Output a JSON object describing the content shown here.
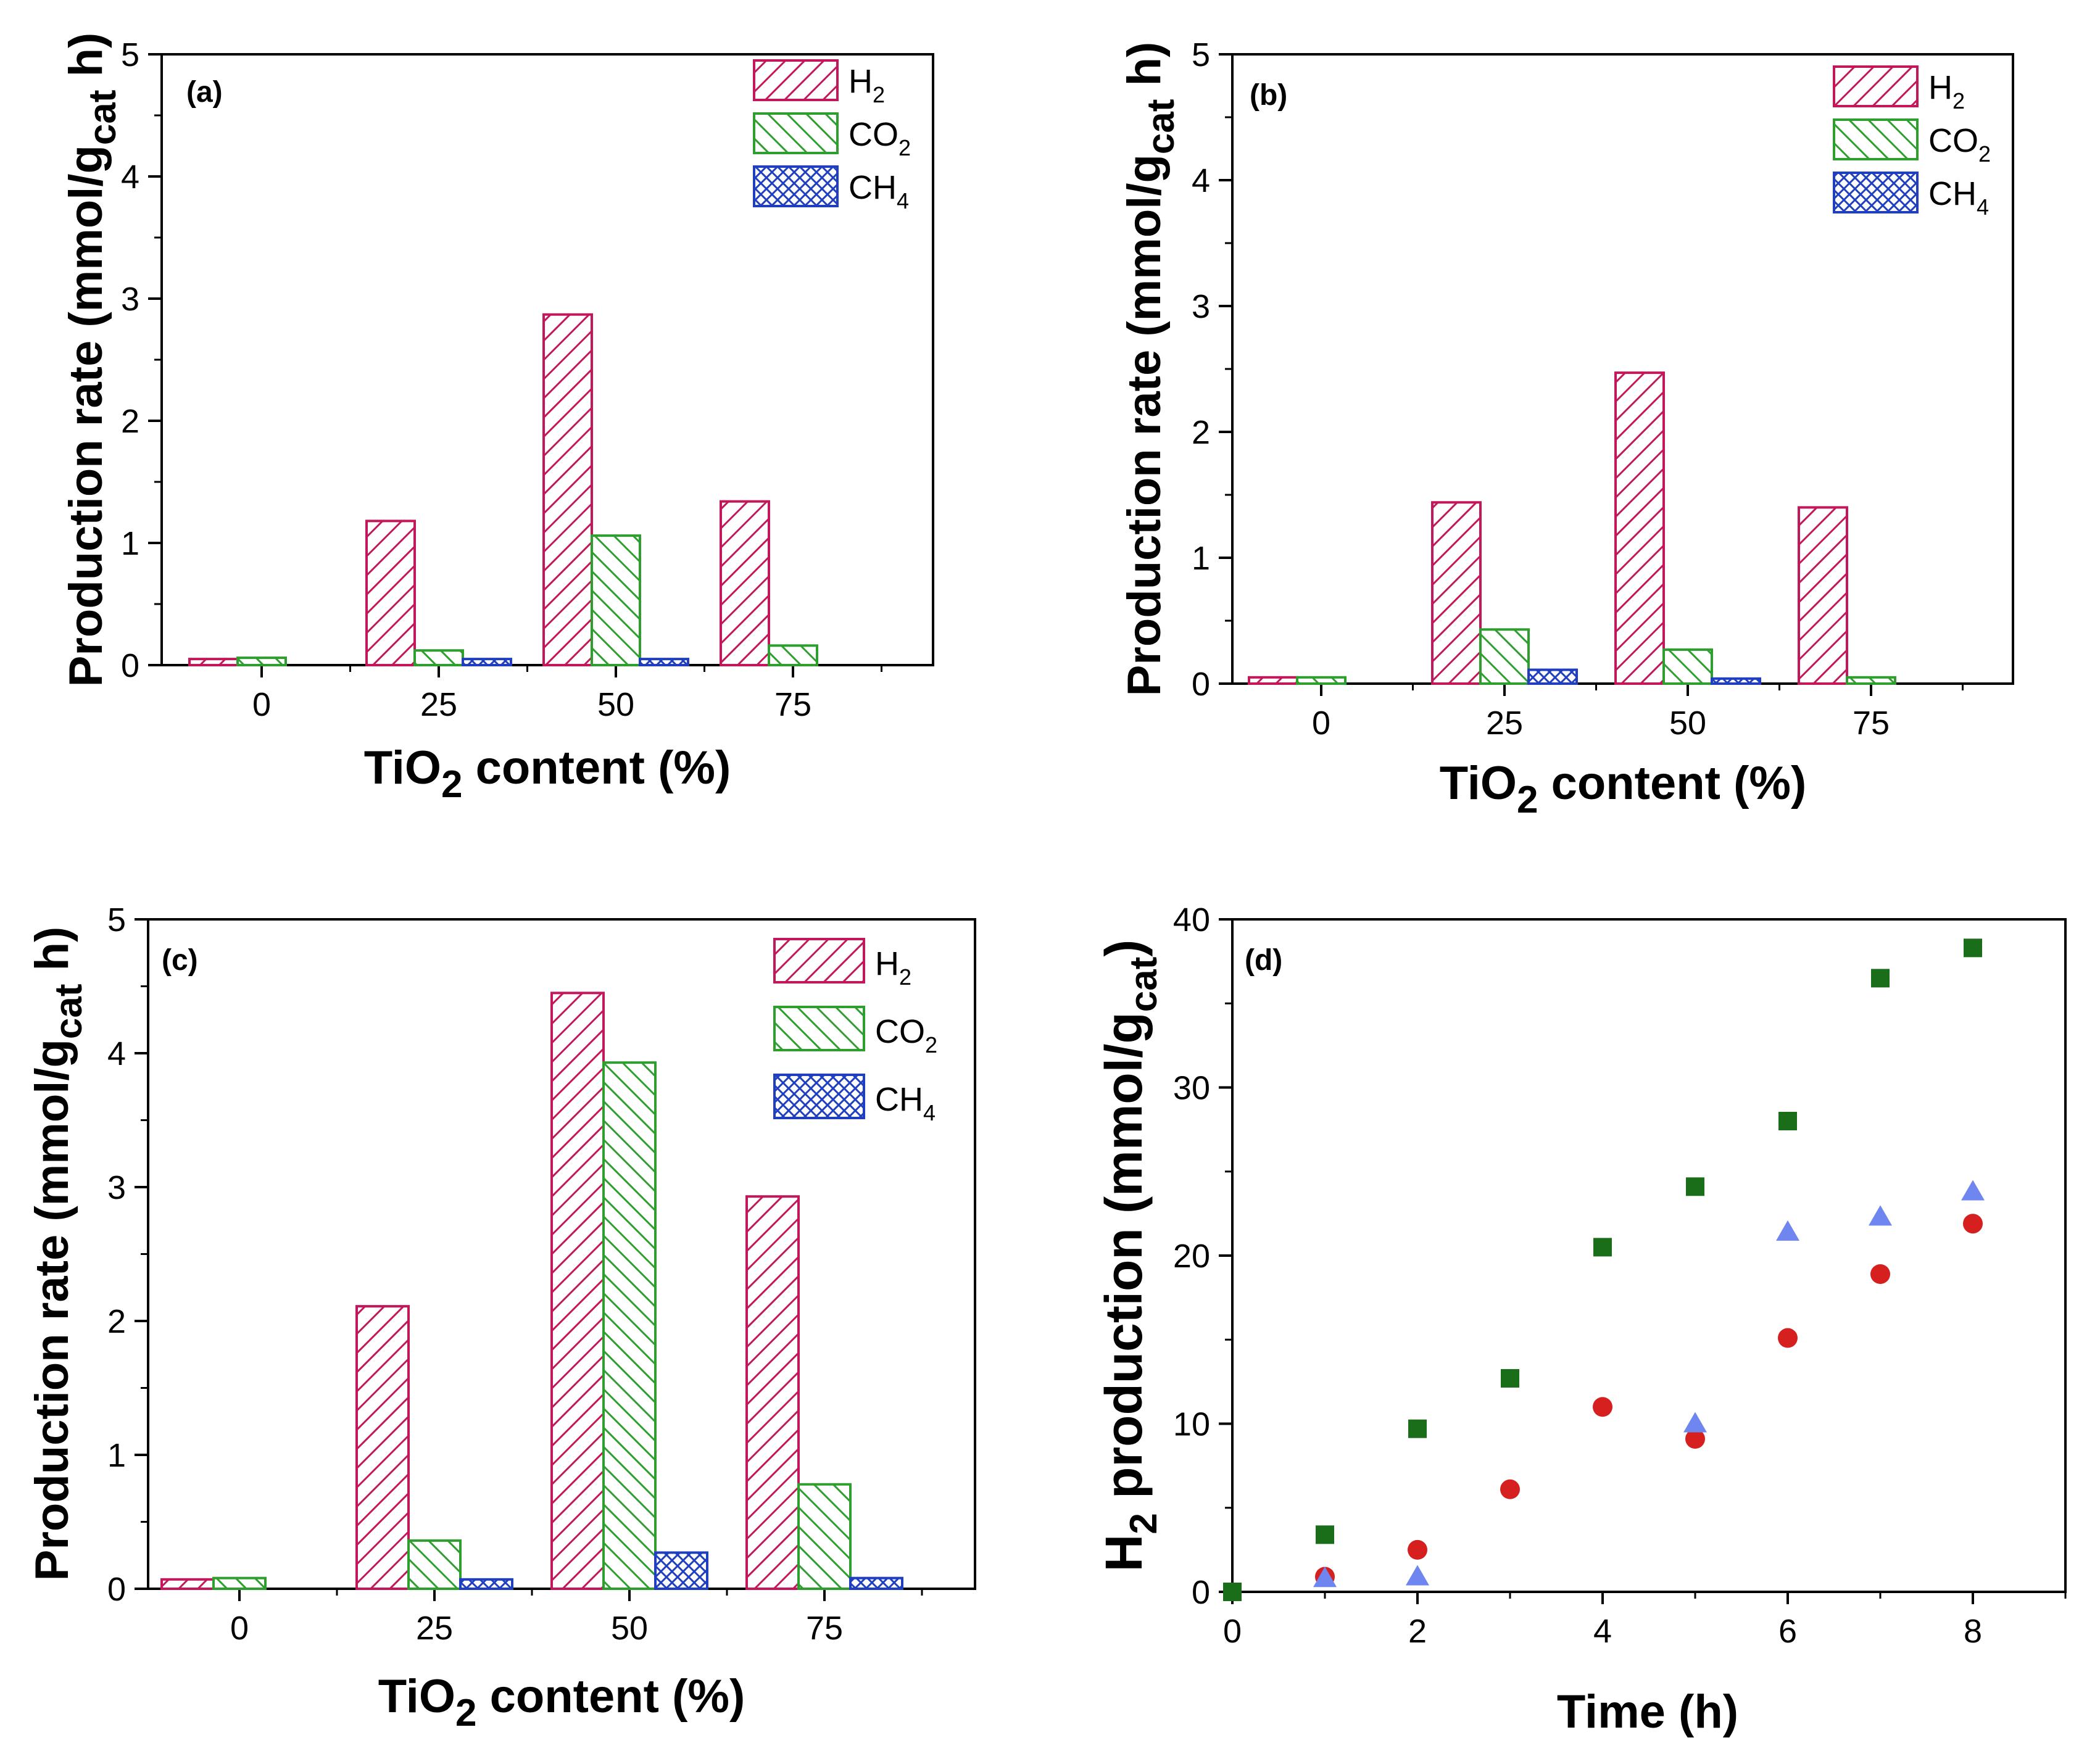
{
  "colors": {
    "h2": "#c2185b",
    "co2": "#2e9e2e",
    "ch4": "#1f3fbf",
    "sq": "#1a6e1a",
    "circ": "#d61f1f",
    "tri": "#6f86f0"
  },
  "chart_data": [
    {
      "type": "bar",
      "panel": "(a)",
      "categories": [
        "0",
        "25",
        "50",
        "75"
      ],
      "series": [
        {
          "name": "H",
          "sub": "2",
          "key": "h2",
          "values": [
            0.05,
            1.18,
            2.87,
            1.34
          ]
        },
        {
          "name": "CO",
          "sub": "2",
          "key": "co2",
          "values": [
            0.06,
            0.12,
            1.06,
            0.16
          ]
        },
        {
          "name": "CH",
          "sub": "4",
          "key": "ch4",
          "values": [
            0,
            0.05,
            0.05,
            0
          ]
        }
      ],
      "xlabel": {
        "pre": "TiO",
        "sub": "2",
        "post": " content (%)"
      },
      "ylabel": {
        "pre": "Production rate (mmol/g",
        "sub": "cat",
        "post": " h)"
      },
      "ylim": [
        0,
        5
      ],
      "yticks": [
        "0",
        "1",
        "2",
        "3",
        "4",
        "5"
      ]
    },
    {
      "type": "bar",
      "panel": "(b)",
      "categories": [
        "0",
        "25",
        "50",
        "75"
      ],
      "series": [
        {
          "name": "H",
          "sub": "2",
          "key": "h2",
          "values": [
            0.05,
            1.44,
            2.47,
            1.4
          ]
        },
        {
          "name": "CO",
          "sub": "2",
          "key": "co2",
          "values": [
            0.05,
            0.43,
            0.27,
            0.05
          ]
        },
        {
          "name": "CH",
          "sub": "4",
          "key": "ch4",
          "values": [
            0,
            0.11,
            0.04,
            0
          ]
        }
      ],
      "xlabel": {
        "pre": "TiO",
        "sub": "2",
        "post": " content (%)"
      },
      "ylabel": {
        "pre": "Production rate (mmol/g",
        "sub": "cat",
        "post": " h)"
      },
      "ylim": [
        0,
        5
      ],
      "yticks": [
        "0",
        "1",
        "2",
        "3",
        "4",
        "5"
      ]
    },
    {
      "type": "bar",
      "panel": "(c)",
      "categories": [
        "0",
        "25",
        "50",
        "75"
      ],
      "series": [
        {
          "name": "H",
          "sub": "2",
          "key": "h2",
          "values": [
            0.07,
            2.11,
            4.45,
            2.93
          ]
        },
        {
          "name": "CO",
          "sub": "2",
          "key": "co2",
          "values": [
            0.08,
            0.36,
            3.93,
            0.78
          ]
        },
        {
          "name": "CH",
          "sub": "4",
          "key": "ch4",
          "values": [
            0,
            0.07,
            0.27,
            0.08
          ]
        }
      ],
      "xlabel": {
        "pre": "TiO",
        "sub": "2",
        "post": " content (%)"
      },
      "ylabel": {
        "pre": "Production rate (mmol/g",
        "sub": "cat",
        "post": " h)"
      },
      "ylim": [
        0,
        5
      ],
      "yticks": [
        "0",
        "1",
        "2",
        "3",
        "4",
        "5"
      ]
    },
    {
      "type": "scatter",
      "panel": "(d)",
      "series": [
        {
          "key": "sq",
          "marker": "square",
          "x": [
            0,
            1,
            2,
            3,
            4,
            5,
            6,
            7,
            8
          ],
          "y": [
            0,
            3.4,
            9.7,
            12.7,
            20.5,
            24.1,
            28.0,
            36.5,
            38.3
          ]
        },
        {
          "key": "circ",
          "marker": "circle",
          "x": [
            1,
            2,
            3,
            4,
            5,
            6,
            7,
            8
          ],
          "y": [
            0.9,
            2.5,
            6.1,
            11.0,
            9.1,
            15.1,
            18.9,
            21.9
          ]
        },
        {
          "key": "tri",
          "marker": "triangle",
          "x": [
            1,
            2,
            5,
            6,
            7,
            8
          ],
          "y": [
            0.8,
            0.9,
            10.0,
            21.4,
            22.3,
            23.8
          ]
        }
      ],
      "xlabel": {
        "pre": "Time (h)",
        "sub": "",
        "post": ""
      },
      "ylabel": {
        "pre": "H",
        "sub": "2",
        "post": " production (mmol/g",
        "sub2": "cat",
        "post2": ")"
      },
      "xlim": [
        0,
        9
      ],
      "ylim": [
        0,
        40
      ],
      "xticks": [
        "0",
        "2",
        "4",
        "6",
        "8"
      ],
      "yticks": [
        "0",
        "10",
        "20",
        "30",
        "40"
      ]
    }
  ]
}
